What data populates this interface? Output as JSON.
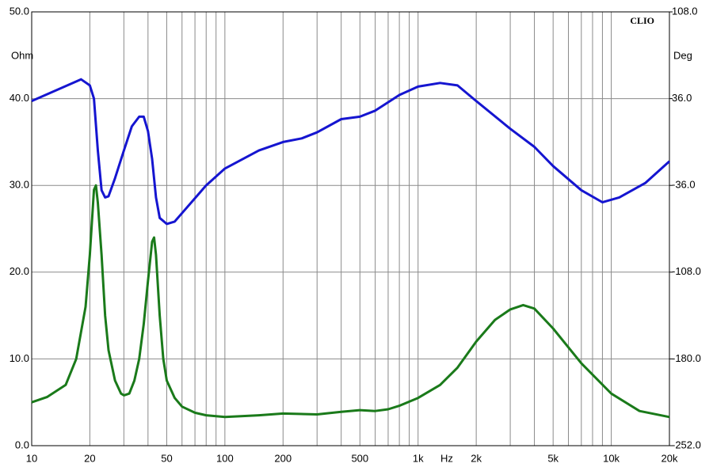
{
  "chart_data": {
    "type": "line",
    "xscale": "log",
    "xlim": [
      10,
      20000
    ],
    "ylim": [
      0,
      50
    ],
    "y2lim": [
      -252,
      108
    ],
    "xlabel": "Hz",
    "ylabel": "Ohm",
    "y2label": "Deg",
    "annotation": "CLIO",
    "grid": true,
    "xticks": [
      10,
      20,
      50,
      100,
      200,
      500,
      {
        "value": 1000,
        "label": "1k"
      },
      {
        "value": 2000,
        "label": "2k"
      },
      {
        "value": 5000,
        "label": "5k"
      },
      {
        "value": 10000,
        "label": "10k"
      },
      {
        "value": 20000,
        "label": "20k"
      }
    ],
    "x_minor_grid": [
      30,
      40,
      60,
      70,
      80,
      90,
      300,
      400,
      600,
      700,
      800,
      900,
      3000,
      4000,
      6000,
      7000,
      8000,
      9000
    ],
    "yticks": [
      {
        "value": 0,
        "label": "0.0"
      },
      {
        "value": 10,
        "label": "10.0"
      },
      {
        "value": 20,
        "label": "20.0"
      },
      {
        "value": 30,
        "label": "30.0"
      },
      {
        "value": 40,
        "label": "40.0"
      },
      {
        "value": 50,
        "label": "50.0"
      }
    ],
    "y2ticks": [
      {
        "value": -252,
        "label": "-252.0"
      },
      {
        "value": -180,
        "label": "-180.0"
      },
      {
        "value": -108,
        "label": "-108.0"
      },
      {
        "value": -36,
        "label": "-36.0"
      },
      {
        "value": 36,
        "label": "36.0"
      },
      {
        "value": 108,
        "label": "108.0"
      }
    ],
    "series": [
      {
        "color": "#1a7a1a",
        "axis": "y",
        "x": [
          10,
          12,
          15,
          17,
          19,
          20,
          21,
          21.5,
          22,
          23,
          24,
          25,
          27,
          29,
          30,
          32,
          34,
          36,
          38,
          40,
          42,
          43,
          44,
          46,
          48,
          50,
          55,
          60,
          70,
          80,
          100,
          150,
          200,
          300,
          400,
          500,
          600,
          700,
          800,
          1000,
          1300,
          1600,
          2000,
          2500,
          3000,
          3500,
          4000,
          5000,
          7000,
          10000,
          14000,
          20000
        ],
        "values": [
          5.0,
          5.6,
          7,
          10,
          16,
          22,
          29.5,
          30,
          28,
          22,
          15,
          11,
          7.5,
          6,
          5.8,
          6,
          7.5,
          10,
          14,
          19,
          23.5,
          24,
          22,
          15,
          10,
          7.5,
          5.5,
          4.5,
          3.8,
          3.5,
          3.3,
          3.5,
          3.7,
          3.6,
          3.9,
          4.1,
          4.0,
          4.2,
          4.6,
          5.5,
          7,
          9,
          12,
          14.5,
          15.7,
          16.2,
          15.8,
          13.5,
          9.5,
          6,
          4,
          3.3
        ]
      },
      {
        "color": "#1515d0",
        "axis": "y2",
        "x": [
          10,
          18,
          20,
          21,
          22,
          23,
          24,
          25,
          27,
          30,
          33,
          36,
          38,
          40,
          42,
          44,
          46,
          50,
          55,
          60,
          80,
          100,
          150,
          200,
          250,
          300,
          400,
          500,
          600,
          800,
          1000,
          1300,
          1600,
          2000,
          3000,
          4000,
          5000,
          7000,
          9000,
          11000,
          15000,
          20000
        ],
        "values": [
          34,
          52,
          47,
          36,
          -7,
          -40,
          -46,
          -45,
          -30,
          -7,
          13,
          21,
          21,
          9,
          -14,
          -46,
          -63,
          -68,
          -66,
          -59,
          -36,
          -22,
          -7,
          0,
          3,
          8,
          19,
          21,
          26,
          39,
          46,
          49,
          47,
          34,
          11,
          -4,
          -20,
          -40,
          -50,
          -46,
          -34,
          -16
        ]
      }
    ]
  }
}
